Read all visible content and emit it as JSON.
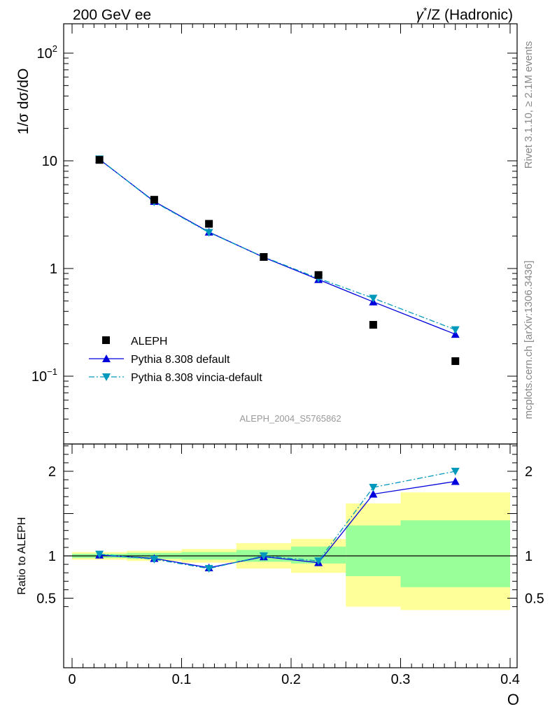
{
  "header": {
    "left": "200 GeV ee",
    "right_prefix": "γ",
    "right_sup": "*",
    "right_suffix": "/Z (Hadronic)"
  },
  "side": {
    "rivet": "Rivet 3.1.10, ≥ 2.1M events",
    "mcplots": "mcplots.cern.ch [arXiv:1306.3436]"
  },
  "analysis_id": "ALEPH_2004_S5765862",
  "colors": {
    "data": "#000000",
    "default": "#0000dd",
    "vincia": "#0099bb",
    "band_outer": "#ffff99",
    "band_inner": "#99ff99"
  },
  "chart_data": [
    {
      "type": "line",
      "panel": "main",
      "ylabel": "1/σ  dσ/dO",
      "yscale": "log",
      "ylim": [
        0.02,
        200
      ],
      "xlim": [
        0,
        0.4
      ],
      "yticks": [
        {
          "value": 100,
          "base": "10",
          "exp": "2"
        },
        {
          "value": 10,
          "base": "10",
          "exp": ""
        },
        {
          "value": 1,
          "base": "1",
          "exp": ""
        },
        {
          "value": 0.1,
          "base": "10",
          "exp": "−1"
        }
      ],
      "legend_position": "bottom-left",
      "series": [
        {
          "name": "ALEPH",
          "key": "data",
          "marker": "square",
          "x": [
            0.025,
            0.075,
            0.125,
            0.175,
            0.225,
            0.275,
            0.35
          ],
          "y": [
            10.2,
            4.35,
            2.6,
            1.28,
            0.87,
            0.3,
            0.138
          ]
        },
        {
          "name": "Pythia 8.308 default",
          "key": "default",
          "marker": "triangle-up",
          "x": [
            0.025,
            0.075,
            0.125,
            0.175,
            0.225,
            0.275,
            0.35
          ],
          "y": [
            10.3,
            4.2,
            2.18,
            1.27,
            0.79,
            0.49,
            0.245
          ]
        },
        {
          "name": "Pythia 8.308 vincia-default",
          "key": "vincia",
          "marker": "triangle-down",
          "x": [
            0.025,
            0.075,
            0.125,
            0.175,
            0.225,
            0.275,
            0.35
          ],
          "y": [
            10.4,
            4.15,
            2.16,
            1.28,
            0.81,
            0.53,
            0.27
          ]
        }
      ]
    },
    {
      "type": "line",
      "panel": "ratio",
      "ylabel": "Ratio to ALEPH",
      "xlabel": "O",
      "ylim": [
        0.35,
        2.35
      ],
      "xlim": [
        0,
        0.4
      ],
      "yticks": [
        0.5,
        1,
        2
      ],
      "xticks": [
        {
          "value": 0,
          "label": "0"
        },
        {
          "value": 0.1,
          "label": "0.1"
        },
        {
          "value": 0.2,
          "label": "0.2"
        },
        {
          "value": 0.3,
          "label": "0.3"
        },
        {
          "value": 0.4,
          "label": "0.4"
        }
      ],
      "bands": [
        {
          "x0": 0.0,
          "x1": 0.05,
          "outer": [
            0.955,
            1.045
          ],
          "inner": [
            0.975,
            1.025
          ]
        },
        {
          "x0": 0.05,
          "x1": 0.1,
          "outer": [
            0.94,
            1.06
          ],
          "inner": [
            0.965,
            1.035
          ]
        },
        {
          "x0": 0.1,
          "x1": 0.15,
          "outer": [
            0.92,
            1.08
          ],
          "inner": [
            0.955,
            1.045
          ]
        },
        {
          "x0": 0.15,
          "x1": 0.2,
          "outer": [
            0.85,
            1.15
          ],
          "inner": [
            0.93,
            1.07
          ]
        },
        {
          "x0": 0.2,
          "x1": 0.25,
          "outer": [
            0.8,
            1.2
          ],
          "inner": [
            0.91,
            1.11
          ]
        },
        {
          "x0": 0.25,
          "x1": 0.3,
          "outer": [
            0.4,
            1.62
          ],
          "inner": [
            0.76,
            1.36
          ]
        },
        {
          "x0": 0.3,
          "x1": 0.4,
          "outer": [
            0.36,
            1.75
          ],
          "inner": [
            0.63,
            1.42
          ]
        }
      ],
      "series": [
        {
          "name": "Pythia 8.308 default",
          "key": "default",
          "marker": "triangle-up",
          "x": [
            0.025,
            0.075,
            0.125,
            0.175,
            0.225,
            0.275,
            0.35
          ],
          "y": [
            1.01,
            0.97,
            0.86,
            0.99,
            0.92,
            1.73,
            1.88
          ]
        },
        {
          "name": "Pythia 8.308 vincia-default",
          "key": "vincia",
          "marker": "triangle-down",
          "x": [
            0.025,
            0.075,
            0.125,
            0.175,
            0.225,
            0.275,
            0.35
          ],
          "y": [
            1.02,
            0.96,
            0.85,
            1.0,
            0.94,
            1.81,
            2.0
          ]
        }
      ]
    }
  ]
}
